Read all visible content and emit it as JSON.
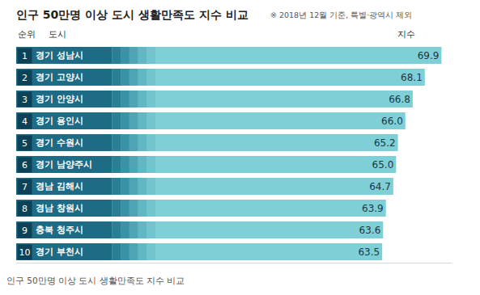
{
  "chart_data": {
    "type": "bar",
    "orientation": "horizontal",
    "title": "인구 50만명 이상 도시 생활만족도 지수 비교",
    "subtitle": "※ 2018년 12월 기준, 특별·광역시 제외",
    "caption": "인구 50만명 이상 도시 생활만족도 지수 비교",
    "annotations": [
      "순위",
      "도시",
      "지수"
    ],
    "ranks": [
      1,
      2,
      3,
      4,
      5,
      6,
      7,
      8,
      9,
      10
    ],
    "categories": [
      "경기 성남시",
      "경기 고양시",
      "경기 안양시",
      "경기 용인시",
      "경기 수원시",
      "경기 남양주시",
      "경남 김해시",
      "경남 창원시",
      "충북 청주시",
      "경기 부천시"
    ],
    "values": [
      69.9,
      68.1,
      66.8,
      66.0,
      65.2,
      65.0,
      64.7,
      63.9,
      63.6,
      63.5
    ],
    "value_labels": [
      "69.9",
      "68.1",
      "66.8",
      "66.0",
      "65.2",
      "65.0",
      "64.7",
      "63.9",
      "63.6",
      "63.5"
    ],
    "color": "#7fd0d6",
    "xlim": [
      24,
      71
    ],
    "data_labels": true,
    "tick_labels": false,
    "grid": false
  }
}
